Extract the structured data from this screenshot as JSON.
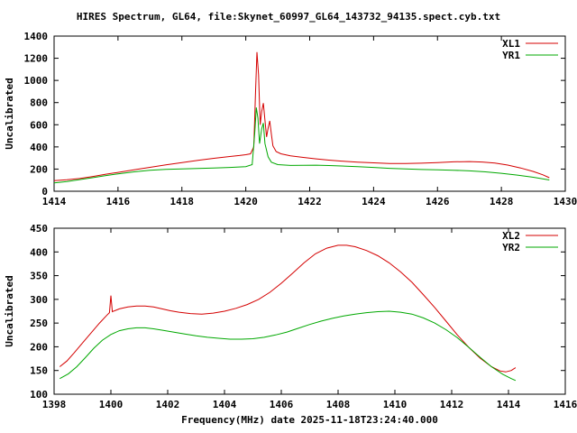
{
  "page": {
    "title": "HIRES Spectrum, GL64, file:Skynet_60997_GL64_143732_94135.spect.cyb.txt",
    "background": "#ffffff",
    "text_color": "#000000"
  },
  "chart_data": [
    {
      "type": "line",
      "title": "",
      "xlabel": "",
      "ylabel": "Uncalibrated",
      "xlim": [
        1414,
        1430
      ],
      "ylim": [
        0,
        1400
      ],
      "xticks": [
        1414,
        1416,
        1418,
        1420,
        1422,
        1424,
        1426,
        1428,
        1430
      ],
      "yticks": [
        0,
        200,
        400,
        600,
        800,
        1000,
        1200,
        1400
      ],
      "grid": false,
      "legend_position": "top-right",
      "series": [
        {
          "name": "XL1",
          "color": "#d40000",
          "points": [
            [
              1414.0,
              95
            ],
            [
              1414.4,
              103
            ],
            [
              1414.8,
              115
            ],
            [
              1415.2,
              133
            ],
            [
              1415.6,
              152
            ],
            [
              1416.0,
              170
            ],
            [
              1416.5,
              193
            ],
            [
              1417.0,
              216
            ],
            [
              1417.5,
              238
            ],
            [
              1418.0,
              258
            ],
            [
              1418.5,
              278
            ],
            [
              1419.0,
              297
            ],
            [
              1419.5,
              313
            ],
            [
              1419.8,
              322
            ],
            [
              1420.0,
              330
            ],
            [
              1420.15,
              338
            ],
            [
              1420.25,
              400
            ],
            [
              1420.3,
              860
            ],
            [
              1420.35,
              1255
            ],
            [
              1420.4,
              1050
            ],
            [
              1420.45,
              600
            ],
            [
              1420.5,
              720
            ],
            [
              1420.55,
              795
            ],
            [
              1420.6,
              640
            ],
            [
              1420.65,
              490
            ],
            [
              1420.7,
              570
            ],
            [
              1420.75,
              635
            ],
            [
              1420.8,
              515
            ],
            [
              1420.85,
              410
            ],
            [
              1420.95,
              358
            ],
            [
              1421.1,
              338
            ],
            [
              1421.4,
              320
            ],
            [
              1421.8,
              305
            ],
            [
              1422.2,
              292
            ],
            [
              1422.6,
              281
            ],
            [
              1423.0,
              272
            ],
            [
              1423.5,
              263
            ],
            [
              1424.0,
              256
            ],
            [
              1424.5,
              251
            ],
            [
              1425.0,
              250
            ],
            [
              1425.5,
              253
            ],
            [
              1426.0,
              258
            ],
            [
              1426.5,
              265
            ],
            [
              1427.0,
              268
            ],
            [
              1427.4,
              264
            ],
            [
              1427.8,
              254
            ],
            [
              1428.2,
              236
            ],
            [
              1428.6,
              210
            ],
            [
              1429.0,
              178
            ],
            [
              1429.3,
              148
            ],
            [
              1429.5,
              122
            ]
          ]
        },
        {
          "name": "YR1",
          "color": "#00a800",
          "points": [
            [
              1414.0,
              75
            ],
            [
              1414.4,
              88
            ],
            [
              1414.8,
              105
            ],
            [
              1415.2,
              122
            ],
            [
              1415.6,
              140
            ],
            [
              1416.0,
              157
            ],
            [
              1416.5,
              175
            ],
            [
              1417.0,
              189
            ],
            [
              1417.5,
              197
            ],
            [
              1418.0,
              202
            ],
            [
              1418.5,
              206
            ],
            [
              1419.0,
              210
            ],
            [
              1419.5,
              215
            ],
            [
              1420.0,
              222
            ],
            [
              1420.2,
              240
            ],
            [
              1420.28,
              520
            ],
            [
              1420.33,
              755
            ],
            [
              1420.38,
              660
            ],
            [
              1420.43,
              430
            ],
            [
              1420.5,
              565
            ],
            [
              1420.55,
              615
            ],
            [
              1420.6,
              430
            ],
            [
              1420.7,
              310
            ],
            [
              1420.8,
              262
            ],
            [
              1421.0,
              240
            ],
            [
              1421.4,
              233
            ],
            [
              1421.8,
              234
            ],
            [
              1422.2,
              235
            ],
            [
              1422.6,
              232
            ],
            [
              1423.0,
              228
            ],
            [
              1423.5,
              222
            ],
            [
              1424.0,
              215
            ],
            [
              1424.5,
              207
            ],
            [
              1425.0,
              201
            ],
            [
              1425.5,
              196
            ],
            [
              1426.0,
              193
            ],
            [
              1426.5,
              190
            ],
            [
              1427.0,
              184
            ],
            [
              1427.5,
              175
            ],
            [
              1428.0,
              162
            ],
            [
              1428.5,
              146
            ],
            [
              1429.0,
              126
            ],
            [
              1429.5,
              102
            ]
          ]
        }
      ]
    },
    {
      "type": "line",
      "title": "",
      "xlabel": "Frequency(MHz) date 2025-11-18T23:24:40.000",
      "ylabel": "Uncalibrated",
      "xlim": [
        1398,
        1416
      ],
      "ylim": [
        100,
        450
      ],
      "xticks": [
        1398,
        1400,
        1402,
        1404,
        1406,
        1408,
        1410,
        1412,
        1414,
        1416
      ],
      "yticks": [
        100,
        150,
        200,
        250,
        300,
        350,
        400,
        450
      ],
      "grid": false,
      "legend_position": "top-right",
      "series": [
        {
          "name": "XL2",
          "color": "#d40000",
          "points": [
            [
              1398.2,
              158
            ],
            [
              1398.45,
              170
            ],
            [
              1398.7,
              187
            ],
            [
              1399.0,
              208
            ],
            [
              1399.3,
              229
            ],
            [
              1399.6,
              250
            ],
            [
              1399.85,
              266
            ],
            [
              1399.95,
              272
            ],
            [
              1400.0,
              308
            ],
            [
              1400.05,
              274
            ],
            [
              1400.3,
              280
            ],
            [
              1400.6,
              284
            ],
            [
              1400.9,
              286
            ],
            [
              1401.2,
              286
            ],
            [
              1401.5,
              284
            ],
            [
              1401.8,
              280
            ],
            [
              1402.1,
              276
            ],
            [
              1402.4,
              273
            ],
            [
              1402.8,
              270
            ],
            [
              1403.2,
              269
            ],
            [
              1403.6,
              271
            ],
            [
              1404.0,
              275
            ],
            [
              1404.4,
              281
            ],
            [
              1404.8,
              289
            ],
            [
              1405.2,
              300
            ],
            [
              1405.6,
              315
            ],
            [
              1406.0,
              334
            ],
            [
              1406.4,
              355
            ],
            [
              1406.8,
              377
            ],
            [
              1407.2,
              396
            ],
            [
              1407.6,
              408
            ],
            [
              1408.0,
              414
            ],
            [
              1408.3,
              414
            ],
            [
              1408.6,
              411
            ],
            [
              1409.0,
              403
            ],
            [
              1409.4,
              392
            ],
            [
              1409.8,
              377
            ],
            [
              1410.2,
              358
            ],
            [
              1410.6,
              336
            ],
            [
              1411.0,
              310
            ],
            [
              1411.4,
              283
            ],
            [
              1411.8,
              254
            ],
            [
              1412.2,
              225
            ],
            [
              1412.6,
              199
            ],
            [
              1413.0,
              176
            ],
            [
              1413.4,
              158
            ],
            [
              1413.7,
              149
            ],
            [
              1413.9,
              147
            ],
            [
              1414.1,
              150
            ],
            [
              1414.25,
              156
            ]
          ]
        },
        {
          "name": "YR2",
          "color": "#00a800",
          "points": [
            [
              1398.2,
              133
            ],
            [
              1398.5,
              143
            ],
            [
              1398.8,
              158
            ],
            [
              1399.1,
              177
            ],
            [
              1399.4,
              197
            ],
            [
              1399.7,
              214
            ],
            [
              1400.0,
              226
            ],
            [
              1400.3,
              234
            ],
            [
              1400.6,
              238
            ],
            [
              1400.9,
              240
            ],
            [
              1401.2,
              240
            ],
            [
              1401.5,
              238
            ],
            [
              1401.8,
              235
            ],
            [
              1402.2,
              231
            ],
            [
              1402.6,
              227
            ],
            [
              1403.0,
              223
            ],
            [
              1403.4,
              220
            ],
            [
              1403.8,
              218
            ],
            [
              1404.2,
              216
            ],
            [
              1404.6,
              216
            ],
            [
              1405.0,
              217
            ],
            [
              1405.4,
              220
            ],
            [
              1405.8,
              225
            ],
            [
              1406.2,
              231
            ],
            [
              1406.6,
              239
            ],
            [
              1407.0,
              247
            ],
            [
              1407.4,
              254
            ],
            [
              1407.8,
              260
            ],
            [
              1408.2,
              265
            ],
            [
              1408.6,
              269
            ],
            [
              1409.0,
              272
            ],
            [
              1409.4,
              274
            ],
            [
              1409.8,
              275
            ],
            [
              1410.2,
              273
            ],
            [
              1410.6,
              269
            ],
            [
              1411.0,
              261
            ],
            [
              1411.4,
              250
            ],
            [
              1411.8,
              236
            ],
            [
              1412.2,
              219
            ],
            [
              1412.6,
              199
            ],
            [
              1413.0,
              178
            ],
            [
              1413.4,
              158
            ],
            [
              1413.8,
              142
            ],
            [
              1414.1,
              133
            ],
            [
              1414.25,
              129
            ]
          ]
        }
      ]
    }
  ]
}
